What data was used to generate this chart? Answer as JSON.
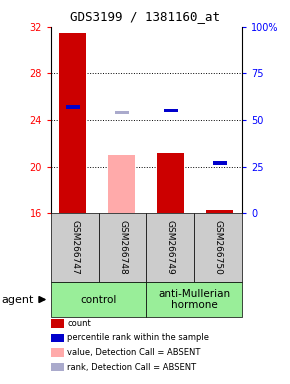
{
  "title": "GDS3199 / 1381160_at",
  "samples": [
    "GSM266747",
    "GSM266748",
    "GSM266749",
    "GSM266750"
  ],
  "ylim_left": [
    16,
    32
  ],
  "ylim_right": [
    0,
    100
  ],
  "yticks_left": [
    16,
    20,
    24,
    28,
    32
  ],
  "yticks_right": [
    0,
    25,
    50,
    75,
    100
  ],
  "ytick_labels_right": [
    "0",
    "25",
    "50",
    "75",
    "100%"
  ],
  "bars": [
    {
      "sample": "GSM266747",
      "count": 31.5,
      "rank": 57,
      "absent": false
    },
    {
      "sample": "GSM266748",
      "count": 21.0,
      "rank": 54,
      "absent": true
    },
    {
      "sample": "GSM266749",
      "count": 21.2,
      "rank": 55,
      "absent": false
    },
    {
      "sample": "GSM266750",
      "count": 16.3,
      "rank": 27,
      "absent": false
    }
  ],
  "count_color": "#cc0000",
  "count_color_absent": "#ffaaaa",
  "rank_color": "#0000cc",
  "rank_color_absent": "#aaaacc",
  "baseline": 16,
  "group_ranges": [
    [
      0,
      2
    ],
    [
      2,
      4
    ]
  ],
  "group_names": [
    "control",
    "anti-Mullerian\nhormone"
  ],
  "group_color": "#99ee99",
  "sample_box_color": "#cccccc",
  "legend_items": [
    {
      "label": "count",
      "color": "#cc0000"
    },
    {
      "label": "percentile rank within the sample",
      "color": "#0000cc"
    },
    {
      "label": "value, Detection Call = ABSENT",
      "color": "#ffaaaa"
    },
    {
      "label": "rank, Detection Call = ABSENT",
      "color": "#aaaacc"
    }
  ],
  "title_fontsize": 9,
  "grid_lines": [
    20,
    24,
    28
  ]
}
